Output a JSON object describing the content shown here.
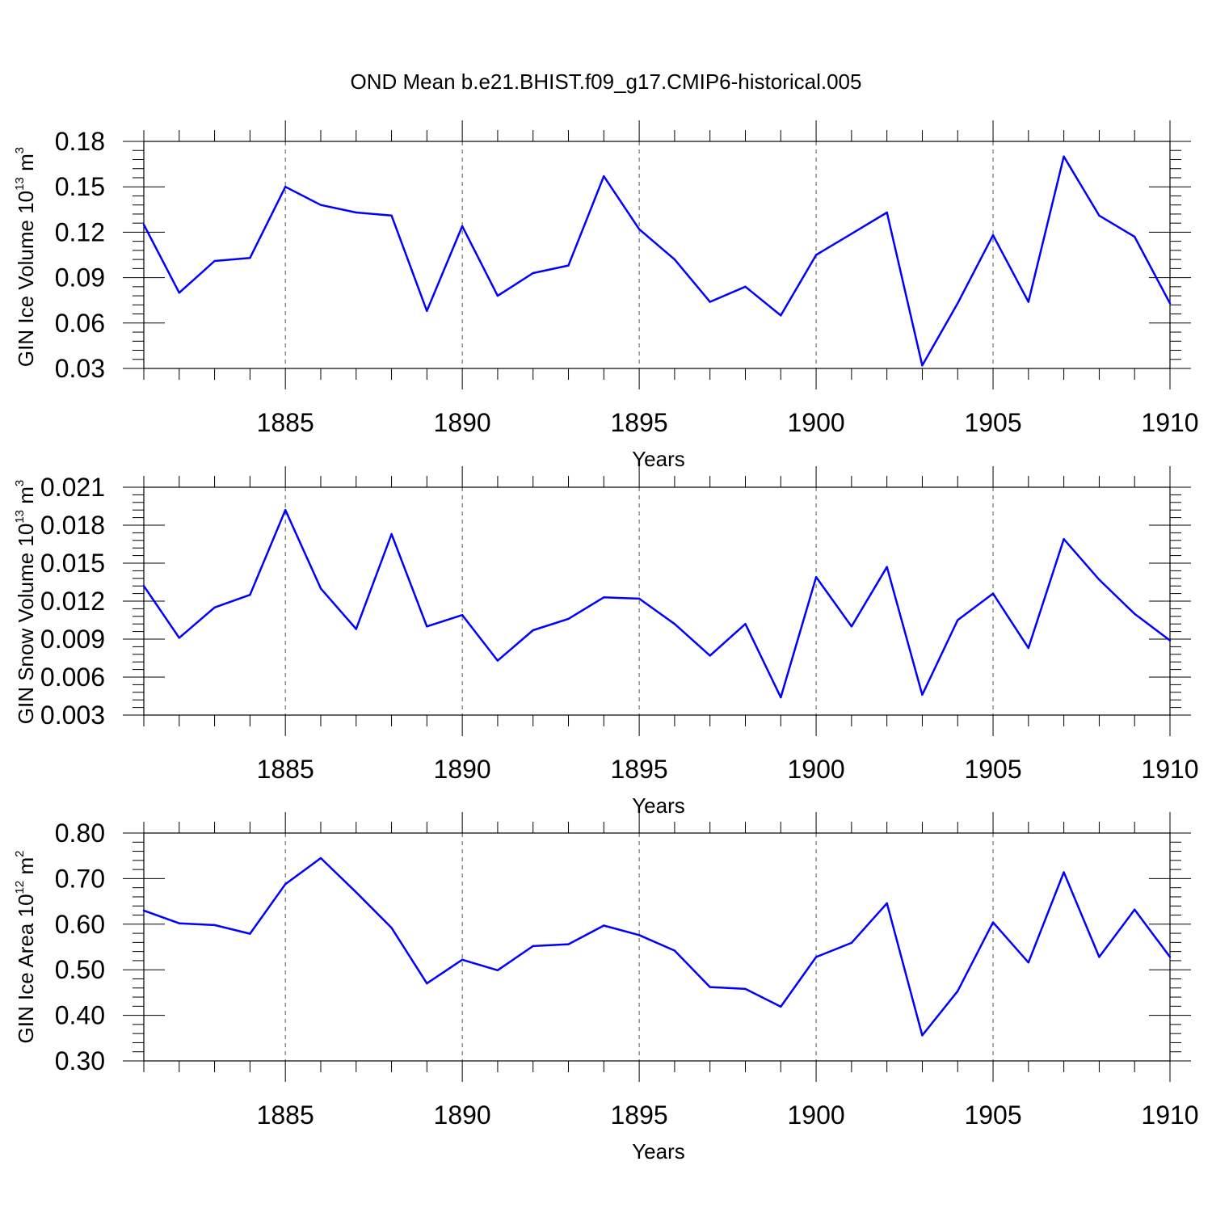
{
  "title": "OND Mean b.e21.BHIST.f09_g17.CMIP6-historical.005",
  "colors": {
    "line": "#0000ff",
    "axis": "#000000",
    "grid": "#555555"
  },
  "chart_data": [
    {
      "type": "line",
      "ylabel": {
        "main": "GIN Ice Volume 10",
        "exp": "13",
        "unit": " m",
        "unit_exp": "3"
      },
      "xlabel": "Years",
      "xlim": [
        1881,
        1910
      ],
      "ylim": [
        0.03,
        0.18
      ],
      "xticks": [
        "1885",
        "1890",
        "1895",
        "1900",
        "1905",
        "1910"
      ],
      "yticks": [
        "0.03",
        "0.06",
        "0.09",
        "0.12",
        "0.15",
        "0.18"
      ],
      "grid": "vertical dashed at major x ticks",
      "series": [
        {
          "x": [
            1881,
            1882,
            1883,
            1884,
            1885,
            1886,
            1887,
            1888,
            1889,
            1890,
            1891,
            1892,
            1893,
            1894,
            1895,
            1896,
            1897,
            1898,
            1899,
            1900,
            1901,
            1902,
            1903,
            1904,
            1905,
            1906,
            1907,
            1908,
            1909,
            1910
          ],
          "values": [
            0.125,
            0.08,
            0.101,
            0.103,
            0.15,
            0.138,
            0.133,
            0.131,
            0.068,
            0.124,
            0.078,
            0.093,
            0.098,
            0.157,
            0.122,
            0.102,
            0.074,
            0.084,
            0.065,
            0.105,
            0.119,
            0.133,
            0.032,
            0.073,
            0.118,
            0.074,
            0.17,
            0.131,
            0.117,
            0.073
          ]
        }
      ]
    },
    {
      "type": "line",
      "ylabel": {
        "main": "GIN Snow Volume 10",
        "exp": "13",
        "unit": " m",
        "unit_exp": "3"
      },
      "xlabel": "Years",
      "xlim": [
        1881,
        1910
      ],
      "ylim": [
        0.003,
        0.021
      ],
      "xticks": [
        "1885",
        "1890",
        "1895",
        "1900",
        "1905",
        "1910"
      ],
      "yticks": [
        "0.003",
        "0.006",
        "0.009",
        "0.012",
        "0.015",
        "0.018",
        "0.021"
      ],
      "grid": "vertical dashed at major x ticks",
      "series": [
        {
          "x": [
            1881,
            1882,
            1883,
            1884,
            1885,
            1886,
            1887,
            1888,
            1889,
            1890,
            1891,
            1892,
            1893,
            1894,
            1895,
            1896,
            1897,
            1898,
            1899,
            1900,
            1901,
            1902,
            1903,
            1904,
            1905,
            1906,
            1907,
            1908,
            1909,
            1910
          ],
          "values": [
            0.0132,
            0.0091,
            0.0115,
            0.0125,
            0.0192,
            0.013,
            0.0098,
            0.0173,
            0.01,
            0.0109,
            0.0073,
            0.0097,
            0.0106,
            0.0123,
            0.0122,
            0.0102,
            0.0077,
            0.0102,
            0.0044,
            0.0139,
            0.01,
            0.0147,
            0.0046,
            0.0105,
            0.0126,
            0.0083,
            0.0169,
            0.0137,
            0.011,
            0.0089
          ]
        }
      ]
    },
    {
      "type": "line",
      "ylabel": {
        "main": "GIN Ice Area 10",
        "exp": "12",
        "unit": " m",
        "unit_exp": "2"
      },
      "xlabel": "Years",
      "xlim": [
        1881,
        1910
      ],
      "ylim": [
        0.3,
        0.8
      ],
      "xticks": [
        "1885",
        "1890",
        "1895",
        "1900",
        "1905",
        "1910"
      ],
      "yticks": [
        "0.30",
        "0.40",
        "0.50",
        "0.60",
        "0.70",
        "0.80"
      ],
      "grid": "vertical dashed at major x ticks",
      "series": [
        {
          "x": [
            1881,
            1882,
            1883,
            1884,
            1885,
            1886,
            1887,
            1888,
            1889,
            1890,
            1891,
            1892,
            1893,
            1894,
            1895,
            1896,
            1897,
            1898,
            1899,
            1900,
            1901,
            1902,
            1903,
            1904,
            1905,
            1906,
            1907,
            1908,
            1909,
            1910
          ],
          "values": [
            0.63,
            0.602,
            0.598,
            0.579,
            0.688,
            0.745,
            0.67,
            0.592,
            0.47,
            0.522,
            0.499,
            0.552,
            0.556,
            0.597,
            0.576,
            0.542,
            0.462,
            0.458,
            0.419,
            0.528,
            0.559,
            0.646,
            0.356,
            0.453,
            0.604,
            0.516,
            0.714,
            0.528,
            0.632,
            0.528
          ]
        }
      ]
    }
  ]
}
